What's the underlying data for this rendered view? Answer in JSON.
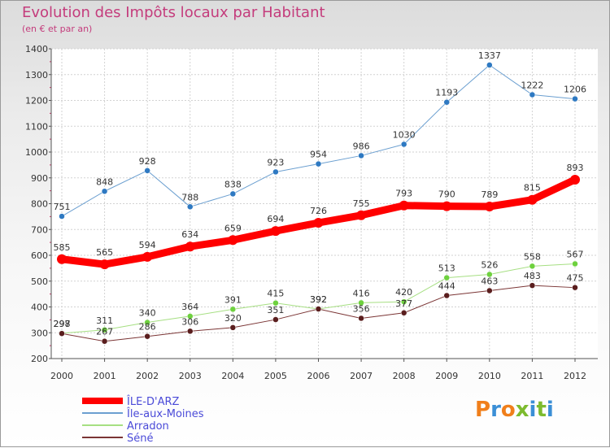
{
  "header": {
    "title": "Evolution des Impôts locaux par Habitant",
    "subtitle": "(en € et par an)"
  },
  "logo": {
    "text": "Proxiti",
    "colors": [
      "#f07f1b",
      "#3b8fd6",
      "#f07f1b",
      "#7dbb2e",
      "#3b8fd6",
      "#7dbb2e",
      "#3b8fd6"
    ]
  },
  "chart_data": {
    "type": "line",
    "title": "Evolution des Impôts locaux par Habitant",
    "subtitle": "(en € et par an)",
    "xlabel": "",
    "ylabel": "",
    "ylim": [
      200,
      1400
    ],
    "yticks": [
      200,
      300,
      400,
      500,
      600,
      700,
      800,
      900,
      1000,
      1100,
      1200,
      1300,
      1400
    ],
    "categories": [
      "2000",
      "2001",
      "2002",
      "2003",
      "2004",
      "2005",
      "2006",
      "2007",
      "2008",
      "2009",
      "2010",
      "2011",
      "2012"
    ],
    "grid": true,
    "legend_position": "bottom-left",
    "series": [
      {
        "name": "Île-aux-Moines",
        "color": "#6b9fd0",
        "marker": "#2e79c2",
        "width": 1,
        "values": [
          751,
          848,
          928,
          788,
          838,
          923,
          954,
          986,
          1030,
          1193,
          1337,
          1222,
          1206
        ]
      },
      {
        "name": "Arradon",
        "color": "#a6df82",
        "marker": "#6ed13e",
        "width": 1,
        "values": [
          298,
          311,
          340,
          364,
          391,
          415,
          392,
          416,
          420,
          513,
          526,
          558,
          567
        ]
      },
      {
        "name": "Séné",
        "color": "#7b3535",
        "marker": "#5a1e1e",
        "width": 1,
        "values": [
          297,
          267,
          286,
          306,
          320,
          351,
          392,
          356,
          377,
          444,
          463,
          483,
          475
        ]
      },
      {
        "name": "ÎLE-D'ARZ",
        "color": "#ff0000",
        "marker": "#ff0000",
        "width": 9,
        "values": [
          585,
          565,
          594,
          634,
          659,
          694,
          726,
          755,
          793,
          790,
          789,
          815,
          893
        ]
      }
    ],
    "legend_order": [
      "ÎLE-D'ARZ",
      "Île-aux-Moines",
      "Arradon",
      "Séné"
    ]
  }
}
